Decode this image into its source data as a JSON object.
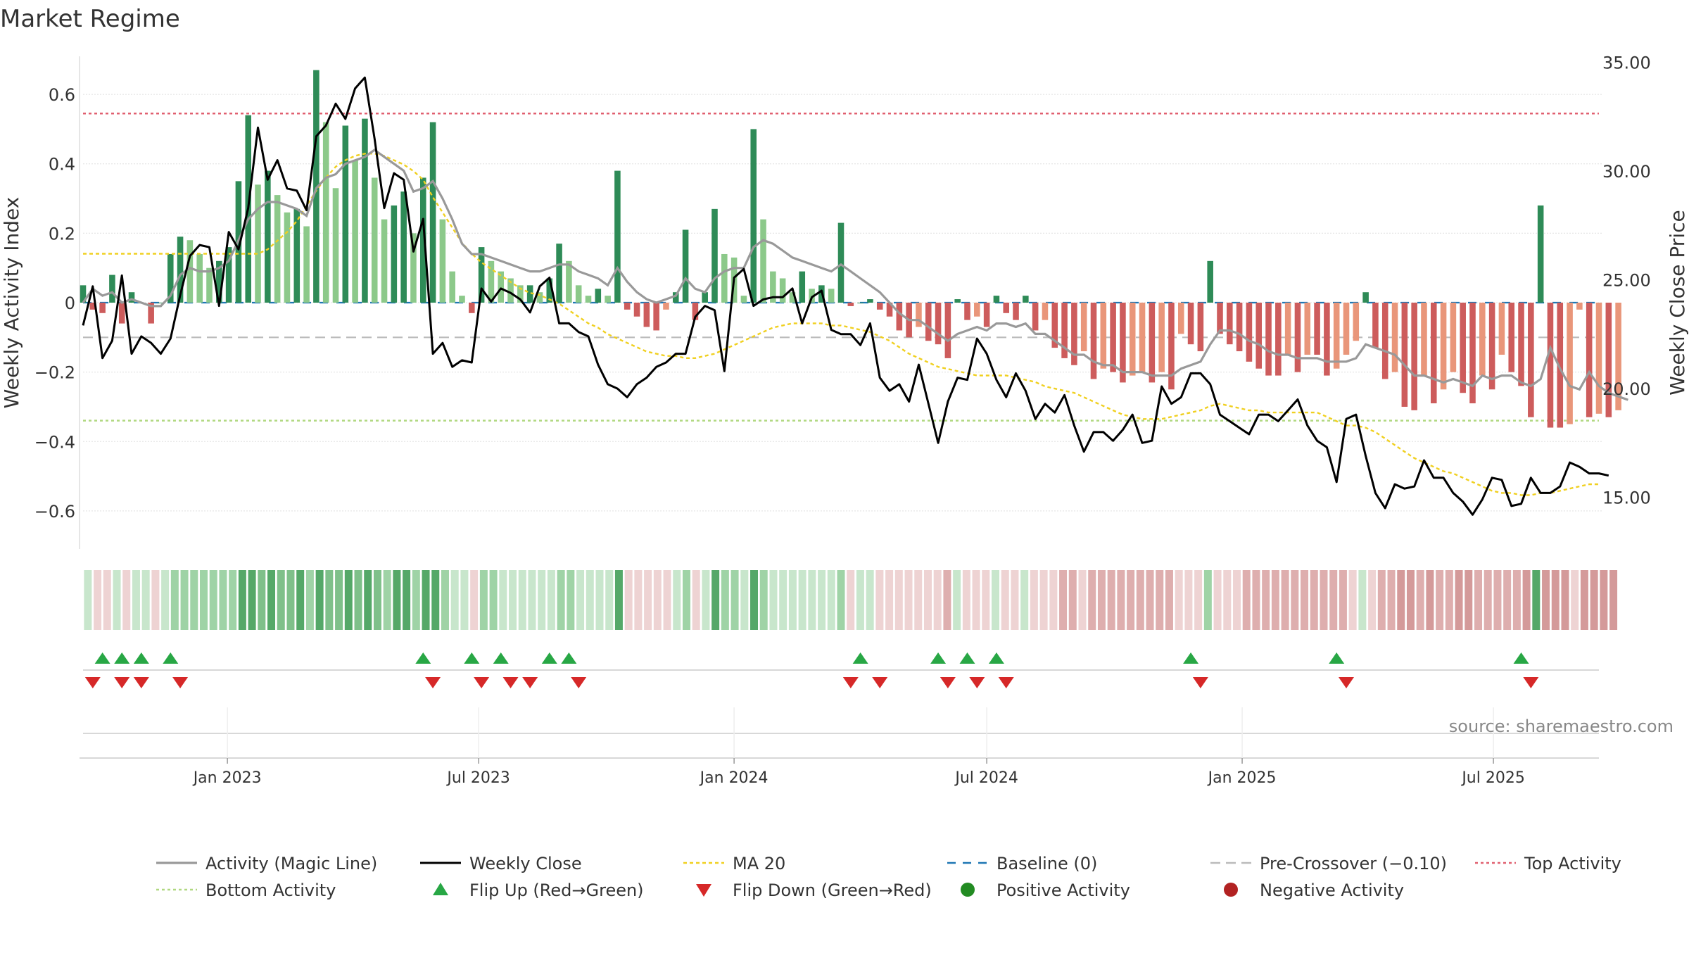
{
  "title": "Market Regime",
  "source": "source: sharemaestro.com",
  "chart_data": {
    "type": "bar",
    "x_start": "2022-09-19",
    "x_step_days": 7,
    "weeks": 157,
    "x_ticks": [
      "Jan 2023",
      "Jul 2023",
      "Jan 2024",
      "Jul 2024",
      "Jan 2025",
      "Jul 2025"
    ],
    "x_tick_dates": [
      "2023-01-01",
      "2023-07-01",
      "2024-01-01",
      "2024-07-01",
      "2025-01-01",
      "2025-07-01"
    ],
    "left_axis": {
      "label": "Weekly Activity Index",
      "ylim": [
        -0.73,
        0.73
      ],
      "ticks": [
        "0.6",
        "0.4",
        "0.2",
        "0",
        "−0.2",
        "−0.4",
        "−0.6"
      ],
      "tick_values": [
        0.6,
        0.4,
        0.2,
        0,
        -0.2,
        -0.4,
        -0.6
      ]
    },
    "right_axis": {
      "label": "Weekly Close Price",
      "ylim": [
        12.3,
        35.6
      ],
      "ticks": [
        "35.00",
        "30.00",
        "25.00",
        "20.00",
        "15.00"
      ],
      "tick_values": [
        35,
        30,
        25,
        20,
        15
      ]
    },
    "levels": {
      "top": 0.545,
      "bottom": -0.34,
      "pre_crossover": -0.1,
      "baseline": 0
    },
    "activity": [
      0.05,
      -0.02,
      -0.03,
      0.08,
      -0.06,
      0.03,
      0.0,
      -0.06,
      0.0,
      0.14,
      0.19,
      0.18,
      0.14,
      0.1,
      0.12,
      0.16,
      0.35,
      0.54,
      0.34,
      0.38,
      0.31,
      0.26,
      0.27,
      0.22,
      0.67,
      0.52,
      0.33,
      0.51,
      0.41,
      0.53,
      0.36,
      0.24,
      0.28,
      0.32,
      0.2,
      0.36,
      0.52,
      0.24,
      0.09,
      0.02,
      -0.03,
      0.16,
      0.12,
      0.09,
      0.07,
      0.05,
      0.05,
      0.03,
      0.07,
      0.17,
      0.12,
      0.05,
      0.02,
      0.04,
      0.02,
      0.38,
      -0.02,
      -0.04,
      -0.07,
      -0.08,
      -0.02,
      0.03,
      0.21,
      -0.05,
      0.03,
      0.27,
      0.14,
      0.13,
      0.02,
      0.5,
      0.24,
      0.09,
      0.07,
      0.03,
      0.09,
      0.04,
      0.05,
      0.04,
      0.23,
      -0.01,
      0.0,
      0.01,
      -0.02,
      -0.04,
      -0.08,
      -0.1,
      -0.07,
      -0.11,
      -0.12,
      -0.16,
      0.01,
      -0.05,
      -0.04,
      -0.07,
      0.02,
      -0.03,
      -0.05,
      0.02,
      -0.08,
      -0.05,
      -0.13,
      -0.16,
      -0.18,
      -0.14,
      -0.22,
      -0.19,
      -0.2,
      -0.23,
      -0.21,
      -0.2,
      -0.23,
      -0.2,
      -0.25,
      -0.09,
      -0.12,
      -0.14,
      0.12,
      -0.09,
      -0.12,
      -0.14,
      -0.17,
      -0.19,
      -0.21,
      -0.21,
      -0.15,
      -0.2,
      -0.15,
      -0.15,
      -0.21,
      -0.19,
      -0.15,
      -0.11,
      0.03,
      -0.13,
      -0.22,
      -0.2,
      -0.3,
      -0.31,
      -0.21,
      -0.29,
      -0.25,
      -0.2,
      -0.26,
      -0.29,
      -0.21,
      -0.25,
      -0.15,
      -0.2,
      -0.24,
      -0.33,
      0.28,
      -0.36,
      -0.36,
      -0.35,
      -0.02,
      -0.33,
      -0.32,
      -0.33,
      -0.31
    ],
    "magic_line": [
      0.0,
      0.04,
      0.02,
      0.03,
      0.0,
      0.01,
      0.0,
      -0.01,
      -0.01,
      0.02,
      0.08,
      0.1,
      0.09,
      0.09,
      0.1,
      0.12,
      0.18,
      0.24,
      0.27,
      0.29,
      0.29,
      0.28,
      0.27,
      0.25,
      0.33,
      0.36,
      0.37,
      0.4,
      0.41,
      0.42,
      0.44,
      0.42,
      0.4,
      0.38,
      0.32,
      0.33,
      0.35,
      0.3,
      0.24,
      0.17,
      0.14,
      0.14,
      0.13,
      0.12,
      0.11,
      0.1,
      0.09,
      0.09,
      0.1,
      0.11,
      0.11,
      0.09,
      0.08,
      0.07,
      0.05,
      0.1,
      0.06,
      0.03,
      0.01,
      0.0,
      0.01,
      0.02,
      0.07,
      0.04,
      0.03,
      0.07,
      0.09,
      0.1,
      0.1,
      0.16,
      0.18,
      0.17,
      0.15,
      0.13,
      0.12,
      0.11,
      0.1,
      0.09,
      0.11,
      0.09,
      0.07,
      0.05,
      0.03,
      0.0,
      -0.03,
      -0.05,
      -0.05,
      -0.07,
      -0.09,
      -0.11,
      -0.09,
      -0.08,
      -0.07,
      -0.08,
      -0.06,
      -0.06,
      -0.07,
      -0.06,
      -0.09,
      -0.09,
      -0.11,
      -0.13,
      -0.15,
      -0.15,
      -0.17,
      -0.18,
      -0.18,
      -0.2,
      -0.2,
      -0.2,
      -0.21,
      -0.21,
      -0.21,
      -0.19,
      -0.18,
      -0.17,
      -0.12,
      -0.08,
      -0.08,
      -0.09,
      -0.11,
      -0.12,
      -0.14,
      -0.15,
      -0.15,
      -0.16,
      -0.16,
      -0.16,
      -0.17,
      -0.17,
      -0.17,
      -0.16,
      -0.12,
      -0.13,
      -0.14,
      -0.15,
      -0.18,
      -0.21,
      -0.21,
      -0.22,
      -0.23,
      -0.22,
      -0.23,
      -0.24,
      -0.21,
      -0.22,
      -0.21,
      -0.21,
      -0.23,
      -0.24,
      -0.22,
      -0.13,
      -0.19,
      -0.24,
      -0.25,
      -0.2,
      -0.24,
      -0.26,
      -0.27,
      -0.28
    ],
    "weekly_close": [
      22.9,
      24.7,
      21.4,
      22.2,
      25.2,
      21.6,
      22.4,
      22.1,
      21.6,
      22.3,
      24.3,
      26.1,
      26.6,
      26.5,
      23.8,
      27.2,
      26.4,
      28.3,
      32.0,
      29.6,
      30.5,
      29.2,
      29.1,
      28.2,
      31.6,
      32.1,
      33.1,
      32.4,
      33.8,
      34.3,
      31.5,
      28.3,
      29.9,
      29.6,
      26.3,
      27.8,
      21.6,
      22.1,
      21.0,
      21.3,
      21.2,
      24.6,
      24.0,
      24.6,
      24.4,
      24.1,
      23.5,
      24.7,
      25.1,
      23.0,
      23.0,
      22.6,
      22.4,
      21.1,
      20.2,
      20.0,
      19.6,
      20.2,
      20.5,
      21.0,
      21.2,
      21.6,
      21.6,
      23.3,
      23.8,
      23.6,
      20.8,
      25.1,
      25.5,
      23.8,
      24.1,
      24.2,
      24.2,
      24.6,
      23.0,
      24.2,
      24.5,
      22.7,
      22.5,
      22.5,
      22.0,
      23.0,
      20.5,
      19.9,
      20.2,
      19.4,
      21.1,
      19.3,
      17.5,
      19.4,
      20.5,
      20.4,
      22.3,
      21.6,
      20.4,
      19.6,
      20.7,
      19.9,
      18.6,
      19.3,
      18.9,
      19.7,
      18.3,
      17.1,
      18.0,
      18.0,
      17.6,
      18.1,
      18.8,
      17.5,
      17.6,
      20.1,
      19.3,
      19.6,
      20.7,
      20.7,
      20.2,
      18.8,
      18.5,
      18.2,
      17.9,
      18.8,
      18.8,
      18.5,
      19.0,
      19.5,
      18.3,
      17.6,
      17.3,
      15.7,
      18.6,
      18.8,
      16.9,
      15.2,
      14.5,
      15.6,
      15.4,
      15.5,
      16.7,
      15.9,
      15.9,
      15.2,
      14.8,
      14.2,
      14.9,
      15.9,
      15.8,
      14.6,
      14.7,
      15.9,
      15.2,
      15.2,
      15.5,
      16.6,
      16.4,
      16.1,
      16.1,
      16.0
    ],
    "ma20": [
      26.2,
      26.2,
      26.2,
      26.2,
      26.2,
      26.2,
      26.2,
      26.2,
      26.2,
      26.2,
      26.2,
      26.2,
      26.2,
      26.2,
      26.2,
      26.2,
      26.2,
      26.2,
      26.2,
      26.4,
      26.8,
      27.2,
      27.7,
      28.4,
      29.1,
      29.7,
      30.2,
      30.5,
      30.7,
      30.8,
      30.8,
      30.7,
      30.5,
      30.3,
      30.0,
      29.6,
      28.8,
      28.1,
      27.4,
      26.7,
      26.2,
      25.8,
      25.5,
      25.2,
      24.9,
      24.6,
      24.4,
      24.3,
      24.1,
      23.9,
      23.6,
      23.3,
      23.0,
      22.8,
      22.5,
      22.3,
      22.1,
      21.9,
      21.7,
      21.6,
      21.5,
      21.5,
      21.4,
      21.4,
      21.5,
      21.6,
      21.8,
      22.0,
      22.2,
      22.4,
      22.6,
      22.8,
      22.9,
      23.0,
      23.0,
      23.0,
      23.0,
      22.9,
      22.9,
      22.8,
      22.7,
      22.6,
      22.4,
      22.2,
      21.9,
      21.6,
      21.4,
      21.2,
      21.0,
      20.9,
      20.8,
      20.7,
      20.6,
      20.6,
      20.6,
      20.6,
      20.5,
      20.4,
      20.3,
      20.1,
      20.0,
      19.9,
      19.8,
      19.6,
      19.4,
      19.2,
      19.0,
      18.8,
      18.7,
      18.6,
      18.6,
      18.6,
      18.7,
      18.8,
      18.9,
      19.0,
      19.2,
      19.3,
      19.2,
      19.1,
      19.0,
      19.0,
      18.9,
      18.9,
      18.9,
      18.9,
      18.9,
      18.9,
      18.7,
      18.5,
      18.3,
      18.3,
      18.2,
      18.0,
      17.7,
      17.4,
      17.1,
      16.8,
      16.6,
      16.4,
      16.2,
      16.1,
      15.9,
      15.7,
      15.5,
      15.3,
      15.2,
      15.2,
      15.1,
      15.1,
      15.2,
      15.2,
      15.3,
      15.4,
      15.5,
      15.6,
      15.6
    ],
    "flip_up_weeks": [
      2,
      4,
      6,
      9,
      35,
      40,
      43,
      48,
      50,
      80,
      88,
      91,
      94,
      114,
      129,
      148
    ],
    "flip_down_weeks": [
      1,
      4,
      6,
      10,
      36,
      41,
      44,
      46,
      51,
      79,
      82,
      89,
      92,
      95,
      115,
      130,
      149
    ],
    "legend": [
      {
        "key": "magic",
        "label": "Activity (Magic Line)"
      },
      {
        "key": "close",
        "label": "Weekly Close"
      },
      {
        "key": "ma",
        "label": "MA 20"
      },
      {
        "key": "baseline",
        "label": "Baseline (0)"
      },
      {
        "key": "pre",
        "label": "Pre-Crossover (−0.10)"
      },
      {
        "key": "top",
        "label": "Top Activity"
      },
      {
        "key": "bottom",
        "label": "Bottom Activity"
      },
      {
        "key": "flipup",
        "label": "Flip Up (Red→Green)"
      },
      {
        "key": "flipdown",
        "label": "Flip Down (Green→Red)"
      },
      {
        "key": "pos",
        "label": "Positive Activity"
      },
      {
        "key": "neg",
        "label": "Negative Activity"
      }
    ],
    "legend_placement": "bottom",
    "grid": true
  },
  "colors": {
    "strong_green": "#2e8b57",
    "light_green": "#8cc98a",
    "strong_red": "#cd5c5c",
    "light_red": "#e9967a",
    "magic": "#999999",
    "close": "#000000",
    "ma": "#f0d020",
    "baseline": "#1f77b4",
    "pre": "#bbbbbb",
    "top": "#e06070",
    "bottom": "#b0d880",
    "flip_up": "#28a745",
    "flip_down": "#d62828",
    "pos": "#228b22",
    "neg": "#b22222"
  }
}
